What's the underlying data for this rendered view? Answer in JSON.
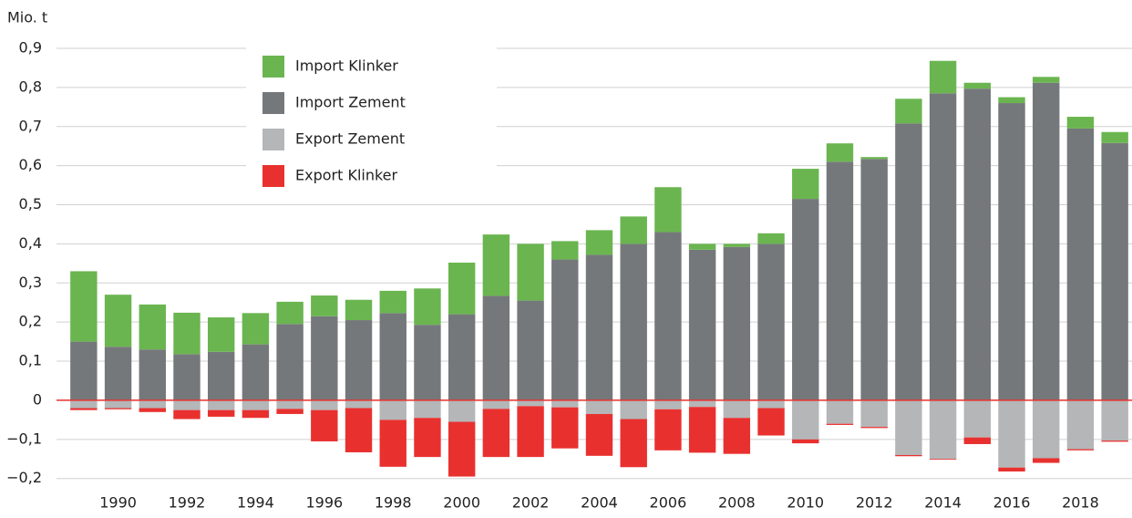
{
  "chart_data": {
    "type": "bar",
    "stacked": true,
    "y_unit_label": "Mio. t",
    "categories": [
      null,
      "1990",
      null,
      "1992",
      null,
      "1994",
      null,
      "1996",
      null,
      "1998",
      null,
      "2000",
      null,
      "2002",
      null,
      "2004",
      null,
      "2006",
      null,
      "2008",
      null,
      "2010",
      null,
      "2012",
      null,
      "2014",
      null,
      "2016",
      null,
      "2018",
      null
    ],
    "series": [
      {
        "name": "Import Klinker",
        "color": "#6ab550",
        "values": [
          0.18,
          0.133,
          0.115,
          0.106,
          0.088,
          0.08,
          0.057,
          0.053,
          0.052,
          0.057,
          0.093,
          0.132,
          0.157,
          0.145,
          0.047,
          0.063,
          0.07,
          0.115,
          0.015,
          0.008,
          0.027,
          0.077,
          0.047,
          0.005,
          0.063,
          0.083,
          0.015,
          0.015,
          0.015,
          0.03,
          0.028
        ]
      },
      {
        "name": "Import Zement",
        "color": "#75787b",
        "values": [
          0.15,
          0.137,
          0.13,
          0.118,
          0.124,
          0.143,
          0.195,
          0.215,
          0.205,
          0.223,
          0.193,
          0.22,
          0.267,
          0.255,
          0.36,
          0.372,
          0.4,
          0.43,
          0.385,
          0.392,
          0.4,
          0.515,
          0.61,
          0.617,
          0.708,
          0.785,
          0.797,
          0.76,
          0.812,
          0.695,
          0.658
        ]
      },
      {
        "name": "Export Zement",
        "color": "#b4b6b8",
        "values": [
          -0.02,
          -0.02,
          -0.02,
          -0.025,
          -0.025,
          -0.025,
          -0.022,
          -0.025,
          -0.02,
          -0.05,
          -0.045,
          -0.055,
          -0.022,
          -0.015,
          -0.018,
          -0.035,
          -0.048,
          -0.023,
          -0.017,
          -0.045,
          -0.02,
          -0.1,
          -0.06,
          -0.068,
          -0.14,
          -0.15,
          -0.095,
          -0.172,
          -0.148,
          -0.125,
          -0.103
        ]
      },
      {
        "name": "Export Klinker",
        "color": "#e8312f",
        "values": [
          -0.005,
          -0.003,
          -0.01,
          -0.023,
          -0.017,
          -0.02,
          -0.013,
          -0.08,
          -0.113,
          -0.12,
          -0.1,
          -0.14,
          -0.123,
          -0.13,
          -0.105,
          -0.107,
          -0.123,
          -0.105,
          -0.117,
          -0.092,
          -0.07,
          -0.01,
          -0.003,
          -0.003,
          -0.003,
          -0.002,
          -0.017,
          -0.01,
          -0.012,
          -0.003,
          -0.003
        ]
      }
    ],
    "ylim": [
      -0.2,
      0.9
    ],
    "yticks": [
      {
        "value": -0.2,
        "label": "−0,2"
      },
      {
        "value": -0.1,
        "label": "−0,1"
      },
      0,
      {
        "value": 0.1,
        "label": "0,1"
      },
      {
        "value": 0.2,
        "label": "0,2"
      },
      {
        "value": 0.3,
        "label": "0,3"
      },
      {
        "value": 0.4,
        "label": "0,4"
      },
      {
        "value": 0.5,
        "label": "0,5"
      },
      {
        "value": 0.6,
        "label": "0,6"
      },
      {
        "value": 0.7,
        "label": "0,7"
      },
      {
        "value": 0.8,
        "label": "0,8"
      },
      {
        "value": 0.9,
        "label": "0,9"
      }
    ],
    "grid": true,
    "zero_line_color": "#e8312f",
    "legend": "upper left"
  }
}
